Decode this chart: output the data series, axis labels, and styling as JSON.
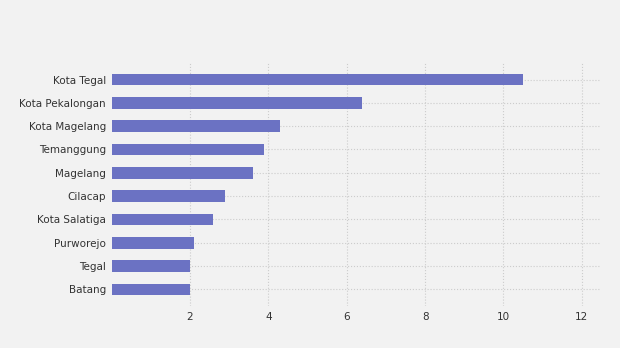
{
  "categories": [
    "Batang",
    "Tegal",
    "Purworejo",
    "Kota Salatiga",
    "Cilacap",
    "Magelang",
    "Temanggung",
    "Kota Magelang",
    "Kota Pekalongan",
    "Kota Tegal"
  ],
  "values": [
    2.0,
    2.0,
    2.1,
    2.6,
    2.9,
    3.6,
    3.9,
    4.3,
    6.4,
    10.5
  ],
  "bar_color": "#6b72c3",
  "background_color": "#f2f2f2",
  "plot_background": "#f2f2f2",
  "xlim": [
    0,
    12.5
  ],
  "xticks": [
    2,
    4,
    6,
    8,
    10,
    12
  ],
  "grid_color": "#cccccc",
  "bar_height": 0.5,
  "tick_fontsize": 7.5
}
